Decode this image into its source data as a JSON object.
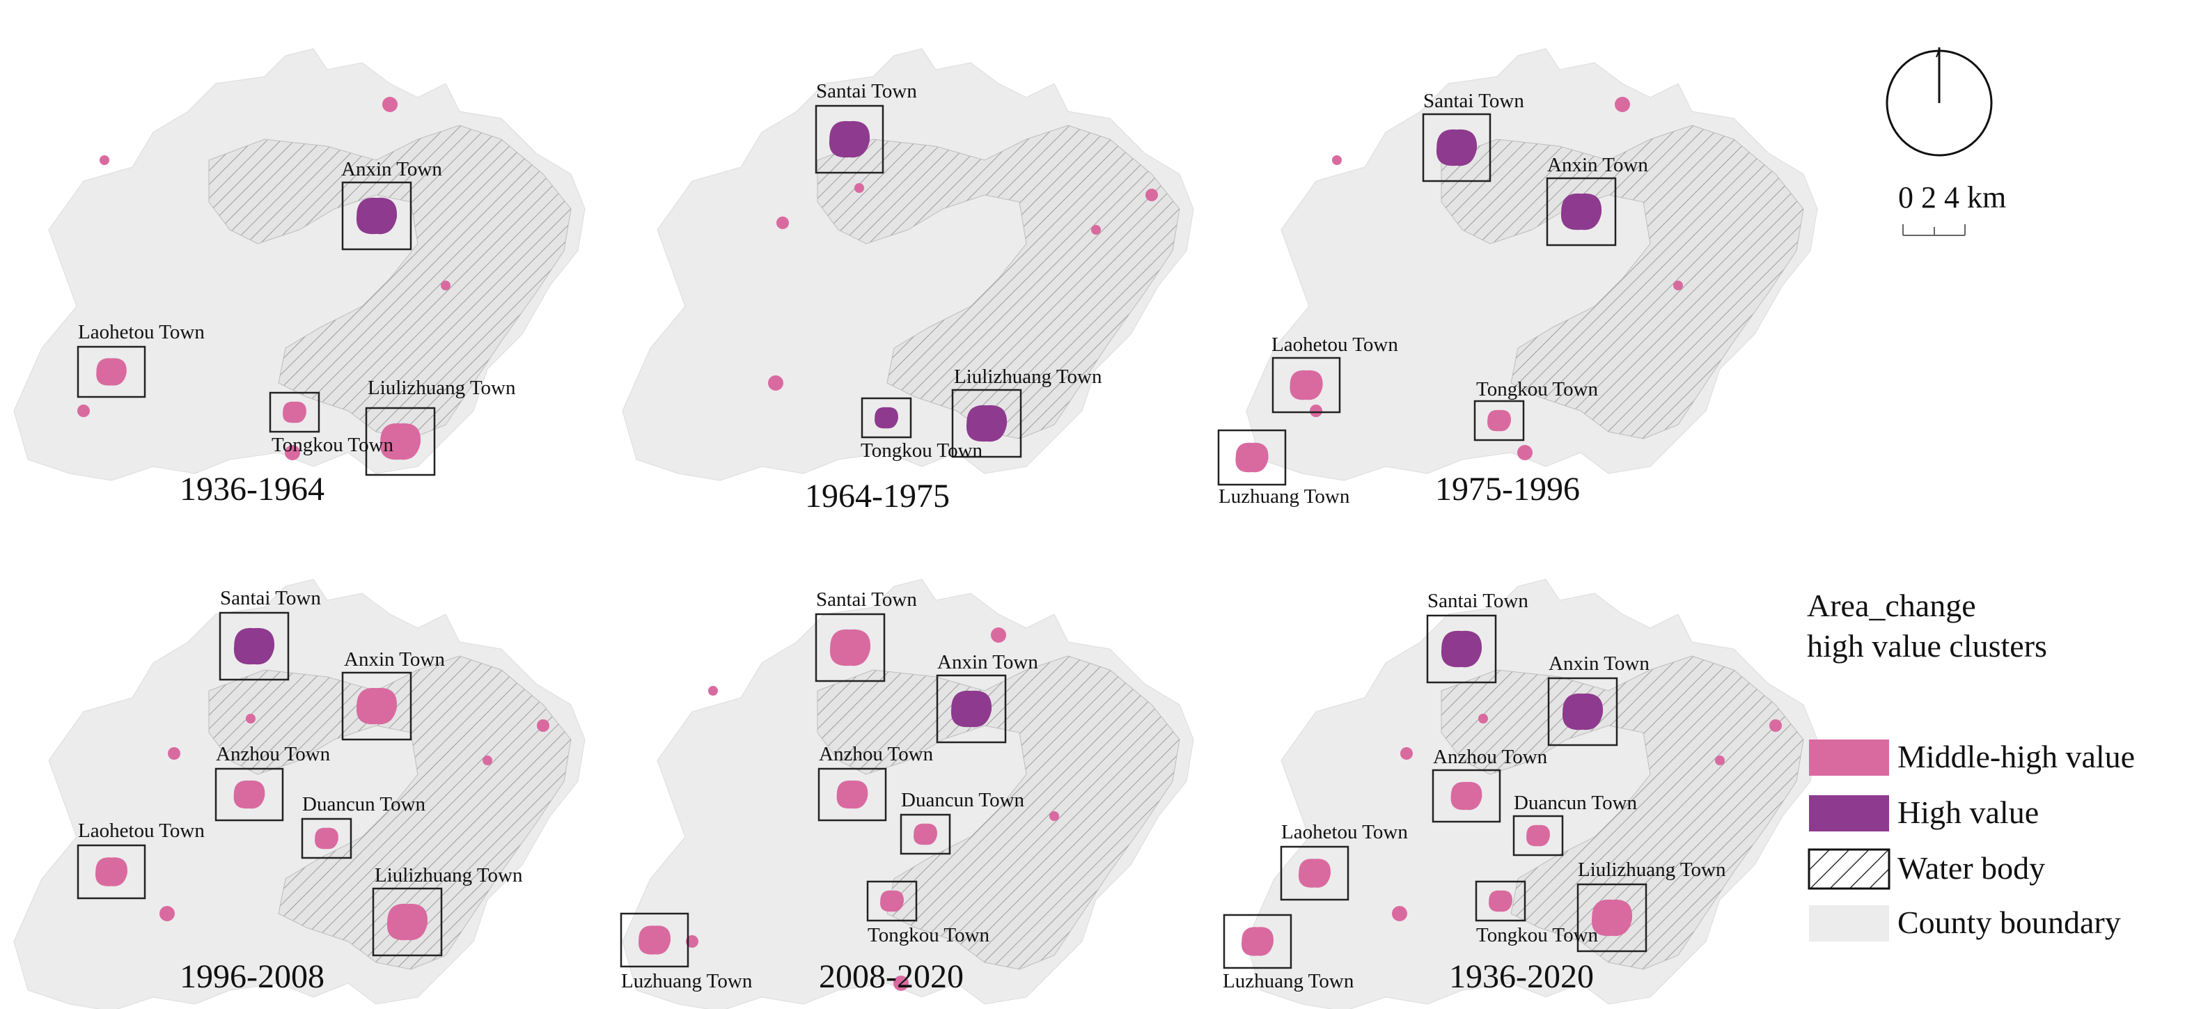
{
  "colors": {
    "middle_high": "#d96aa0",
    "high": "#8e3a8e",
    "county": "#ececec",
    "water_hatch": "#9a9a9a",
    "box": "#222222"
  },
  "panels": [
    {
      "period": "1936-1964",
      "towns": [
        {
          "name": "Anxin Town",
          "level": "high"
        },
        {
          "name": "Laohetou Town",
          "level": "middle_high"
        },
        {
          "name": "Liulizhuang Town",
          "level": "middle_high"
        },
        {
          "name": "Tongkou Town",
          "level": "middle_high"
        }
      ]
    },
    {
      "period": "1964-1975",
      "towns": [
        {
          "name": "Santai Town",
          "level": "high"
        },
        {
          "name": "Liulizhuang Town",
          "level": "high"
        },
        {
          "name": "Tongkou Town",
          "level": "high"
        }
      ]
    },
    {
      "period": "1975-1996",
      "towns": [
        {
          "name": "Santai Town",
          "level": "high"
        },
        {
          "name": "Anxin Town",
          "level": "high"
        },
        {
          "name": "Laohetou Town",
          "level": "middle_high"
        },
        {
          "name": "Tongkou Town",
          "level": "middle_high"
        },
        {
          "name": "Luzhuang Town",
          "level": "middle_high"
        }
      ]
    },
    {
      "period": "1996-2008",
      "towns": [
        {
          "name": "Santai Town",
          "level": "high"
        },
        {
          "name": "Anxin Town",
          "level": "middle_high"
        },
        {
          "name": "Anzhou Town",
          "level": "middle_high"
        },
        {
          "name": "Duancun Town",
          "level": "middle_high"
        },
        {
          "name": "Laohetou Town",
          "level": "middle_high"
        },
        {
          "name": "Liulizhuang Town",
          "level": "middle_high"
        }
      ]
    },
    {
      "period": "2008-2020",
      "towns": [
        {
          "name": "Santai Town",
          "level": "middle_high"
        },
        {
          "name": "Anxin Town",
          "level": "high"
        },
        {
          "name": "Anzhou Town",
          "level": "middle_high"
        },
        {
          "name": "Duancun Town",
          "level": "middle_high"
        },
        {
          "name": "Tongkou Town",
          "level": "middle_high"
        },
        {
          "name": "Luzhuang Town",
          "level": "middle_high"
        }
      ]
    },
    {
      "period": "1936-2020",
      "towns": [
        {
          "name": "Santai Town",
          "level": "high"
        },
        {
          "name": "Anxin Town",
          "level": "high"
        },
        {
          "name": "Anzhou Town",
          "level": "middle_high"
        },
        {
          "name": "Duancun Town",
          "level": "middle_high"
        },
        {
          "name": "Laohetou Town",
          "level": "middle_high"
        },
        {
          "name": "Liulizhuang Town",
          "level": "middle_high"
        },
        {
          "name": "Tongkou Town",
          "level": "middle_high"
        },
        {
          "name": "Luzhuang Town",
          "level": "middle_high"
        }
      ]
    }
  ],
  "north_arrow": {
    "icon": "north-arrow-icon"
  },
  "scale_bar": {
    "label": "0 2 4 km"
  },
  "legend": {
    "title_line1": "Area_change",
    "title_line2": "high value clusters",
    "items": [
      {
        "key": "middle_high",
        "label": "Middle-high value"
      },
      {
        "key": "high",
        "label": "High value"
      },
      {
        "key": "water",
        "label": "Water body"
      },
      {
        "key": "county",
        "label": "County boundary"
      }
    ]
  }
}
